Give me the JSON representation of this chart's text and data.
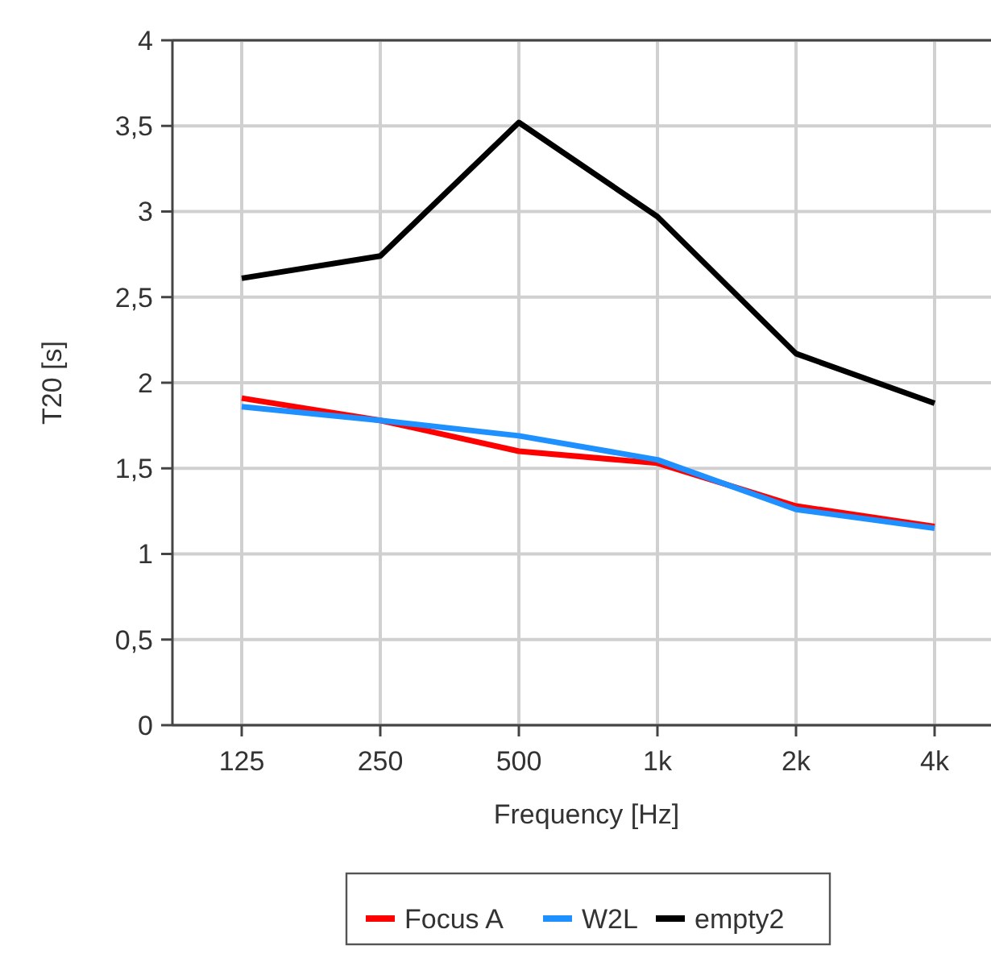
{
  "chart_data": {
    "type": "line",
    "xlabel": "Frequency [Hz]",
    "ylabel": "T20 [s]",
    "categories": [
      "125",
      "250",
      "500",
      "1k",
      "2k",
      "4k"
    ],
    "series": [
      {
        "name": "Focus A",
        "color": "#ff0000",
        "values": [
          1.91,
          1.78,
          1.6,
          1.53,
          1.28,
          1.16
        ]
      },
      {
        "name": "W2L",
        "color": "#1e90ff",
        "values": [
          1.86,
          1.78,
          1.69,
          1.55,
          1.26,
          1.15
        ]
      },
      {
        "name": "empty2",
        "color": "#000000",
        "values": [
          2.61,
          2.74,
          3.52,
          2.97,
          2.17,
          1.88
        ]
      }
    ],
    "ylim": [
      0,
      4
    ],
    "yticks": [
      0,
      {
        "value": 0.5,
        "label": "0,5"
      },
      1,
      {
        "value": 1.5,
        "label": "1,5"
      },
      2,
      {
        "value": 2.5,
        "label": "2,5"
      },
      3,
      {
        "value": 3.5,
        "label": "3,5"
      },
      4
    ],
    "grid": true,
    "legend": "bottom",
    "marker": "none",
    "line_style": "solid"
  }
}
